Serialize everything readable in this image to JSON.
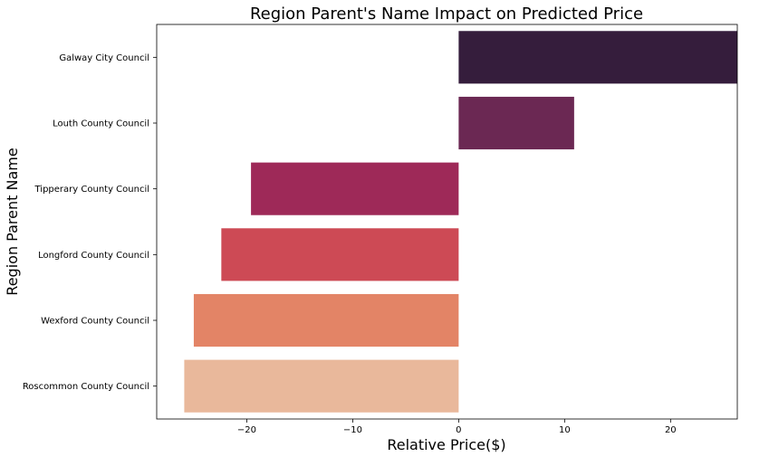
{
  "chart_data": {
    "type": "bar",
    "orientation": "horizontal",
    "title": "Region Parent's Name Impact on Predicted Price",
    "xlabel": "Relative Price($)",
    "ylabel": "Region Parent Name",
    "categories": [
      "Galway City Council",
      "Louth County Council",
      "Tipperary County Council",
      "Longford County Council",
      "Wexford County Council",
      "Roscommon County Council"
    ],
    "values": [
      26.3,
      10.9,
      -19.6,
      -22.4,
      -25.0,
      -25.9
    ],
    "colors": [
      "#351d3c",
      "#6b2853",
      "#9e2958",
      "#cd4a55",
      "#e38466",
      "#e9b89b"
    ],
    "xlim": [
      -28.5,
      26.3
    ],
    "xticks": [
      -20,
      -10,
      0,
      10,
      20
    ],
    "xtick_labels": [
      "−20",
      "−10",
      "0",
      "10",
      "20"
    ],
    "grid": false,
    "legend": "none"
  }
}
